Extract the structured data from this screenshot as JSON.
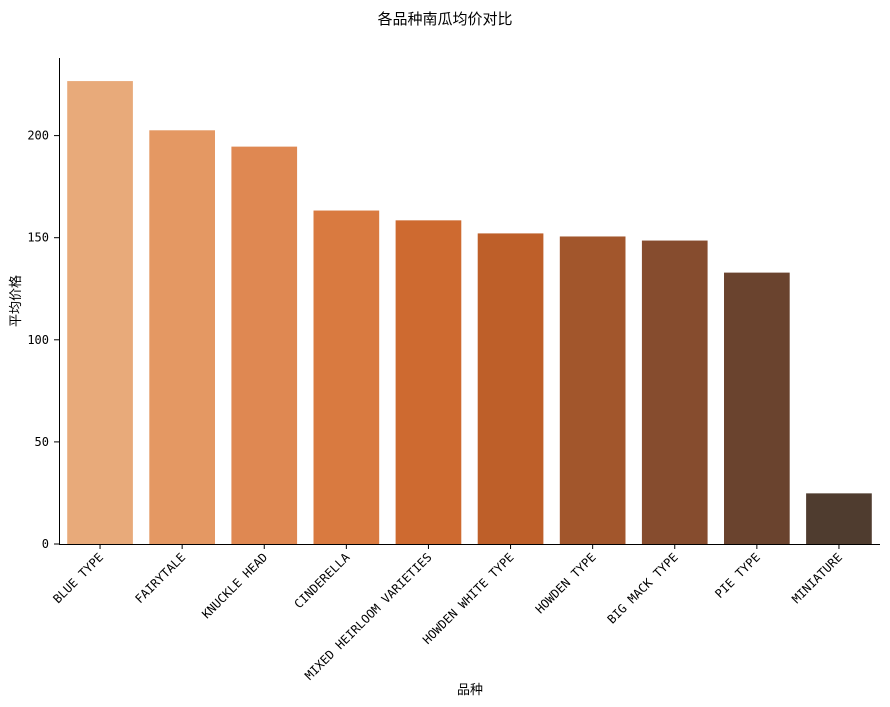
{
  "chart_data": {
    "type": "bar",
    "title": "各品种南瓜均价对比",
    "xlabel": "品种",
    "ylabel": "平均价格",
    "categories": [
      "BLUE TYPE",
      "FAIRYTALE",
      "KNUCKLE HEAD",
      "CINDERELLA",
      "MIXED HEIRLOOM VARIETIES",
      "HOWDEN WHITE TYPE",
      "HOWDEN TYPE",
      "BIG MACK TYPE",
      "PIE TYPE",
      "MINIATURE"
    ],
    "values": [
      226.7,
      202.6,
      194.6,
      163.3,
      158.5,
      152.1,
      150.6,
      148.6,
      132.9,
      24.8
    ],
    "colors": [
      "#E8AA7A",
      "#E49863",
      "#DF8852",
      "#D97A40",
      "#CE6A30",
      "#BE5F29",
      "#A2562C",
      "#864C2E",
      "#6A432E",
      "#4F3C2F"
    ],
    "ylim": [
      0,
      238
    ],
    "yticks": [
      0,
      50,
      100,
      150,
      200
    ],
    "grid": false,
    "legend": "none"
  }
}
